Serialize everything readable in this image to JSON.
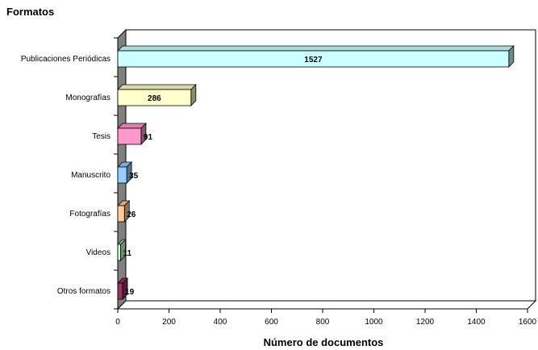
{
  "chart_data": {
    "type": "bar",
    "orientation": "horizontal",
    "three_d": true,
    "title": "Formatos",
    "xlabel": "Número de documentos",
    "ylabel": "",
    "xlim": [
      0,
      1600
    ],
    "x_ticks": [
      "0",
      "200",
      "400",
      "600",
      "800",
      "1000",
      "1200",
      "1400",
      "1600"
    ],
    "grid": false,
    "categories": [
      "Publicaciones Periódicas",
      "Monografías",
      "Tesis",
      "Manuscrito",
      "Fotografías",
      "Videos",
      "Otros formatos"
    ],
    "values": [
      1527,
      286,
      91,
      35,
      26,
      11,
      19
    ],
    "value_labels": [
      "1527",
      "286",
      "91",
      "35",
      "26",
      "11",
      "19"
    ],
    "bar_colors": [
      "#CCFFFF",
      "#FFFFCC",
      "#FF99CC",
      "#99CCFF",
      "#FFCC99",
      "#CCFFCC",
      "#993366"
    ]
  }
}
